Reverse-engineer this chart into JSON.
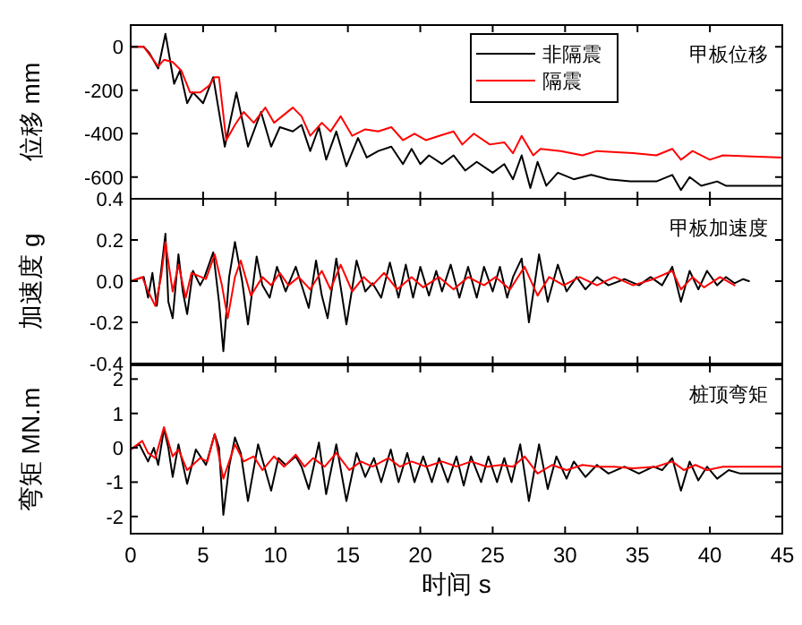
{
  "chart_data": [
    {
      "type": "line",
      "ylabel": "位移 mm",
      "xlim": [
        0,
        45
      ],
      "xticks": [
        0,
        5,
        10,
        15,
        20,
        25,
        30,
        35,
        40,
        45
      ],
      "ylim": [
        -700,
        100
      ],
      "yticks": [
        -600,
        -400,
        -200,
        0
      ],
      "tick_labels": "y",
      "legend": "top right",
      "annotations": [
        "甲板位移"
      ],
      "series": [
        {
          "name": "非隔震",
          "color": "#000000",
          "x": [
            0,
            0.9,
            1.3,
            1.9,
            2.4,
            3.0,
            3.4,
            3.9,
            4.3,
            5.0,
            5.7,
            6.5,
            7.3,
            8.1,
            9.0,
            9.7,
            10.3,
            11.2,
            11.8,
            12.4,
            13.0,
            13.5,
            14.2,
            14.9,
            15.7,
            16.3,
            17.1,
            18.0,
            18.8,
            19.4,
            20.0,
            20.6,
            21.5,
            22.3,
            23.1,
            23.9,
            25.0,
            25.8,
            26.4,
            27.0,
            27.6,
            28.1,
            28.7,
            29.5,
            30.6,
            31.8,
            33.0,
            34.5,
            36.3,
            37.4,
            38.0,
            38.6,
            39.4,
            40.5,
            41.1,
            45
          ],
          "values": [
            0,
            0,
            -30,
            -100,
            60,
            -170,
            -110,
            -260,
            -210,
            -260,
            -140,
            -460,
            -210,
            -460,
            -300,
            -460,
            -370,
            -390,
            -360,
            -480,
            -370,
            -520,
            -390,
            -550,
            -420,
            -510,
            -480,
            -460,
            -540,
            -470,
            -540,
            -500,
            -540,
            -500,
            -570,
            -530,
            -580,
            -540,
            -610,
            -500,
            -650,
            -530,
            -640,
            -580,
            -610,
            -590,
            -610,
            -620,
            -620,
            -590,
            -660,
            -600,
            -640,
            -620,
            -640,
            -640
          ]
        },
        {
          "name": "隔震",
          "color": "#ff0000",
          "x": [
            0,
            0.9,
            1.9,
            2.3,
            2.9,
            3.5,
            4.1,
            4.8,
            5.4,
            5.8,
            6.1,
            6.6,
            7.2,
            7.8,
            8.5,
            9.3,
            9.9,
            11.2,
            11.8,
            12.4,
            13.2,
            13.8,
            14.5,
            15.3,
            16.2,
            17.1,
            18.0,
            18.8,
            19.6,
            20.4,
            21.3,
            22.3,
            22.9,
            23.7,
            24.8,
            25.8,
            26.4,
            27.0,
            27.8,
            28.3,
            29.7,
            31.2,
            32.2,
            34.7,
            36.3,
            37.4,
            38.0,
            38.8,
            40.0,
            40.9,
            45
          ],
          "values": [
            0,
            0,
            -90,
            -60,
            -70,
            -110,
            -210,
            -210,
            -180,
            -140,
            -140,
            -430,
            -360,
            -300,
            -350,
            -280,
            -350,
            -280,
            -320,
            -410,
            -350,
            -390,
            -320,
            -410,
            -380,
            -390,
            -370,
            -430,
            -400,
            -430,
            -410,
            -390,
            -450,
            -400,
            -450,
            -440,
            -490,
            -410,
            -500,
            -470,
            -480,
            -500,
            -480,
            -490,
            -500,
            -470,
            -520,
            -480,
            -520,
            -500,
            -510
          ]
        }
      ]
    },
    {
      "type": "line",
      "ylabel": "加速度 g",
      "xlim": [
        0,
        45
      ],
      "xticks": [
        0,
        5,
        10,
        15,
        20,
        25,
        30,
        35,
        40,
        45
      ],
      "ylim": [
        -0.4,
        0.4
      ],
      "yticks": [
        -0.4,
        -0.2,
        {
          "value": 0,
          "label": "0.0"
        },
        0.2,
        0.4
      ],
      "tick_labels": "y",
      "annotations": [
        "甲板加速度"
      ],
      "series": [
        {
          "color": "#000000",
          "x": [
            0,
            0.9,
            1.2,
            1.5,
            1.8,
            2.1,
            2.4,
            2.6,
            2.9,
            3.3,
            3.6,
            3.9,
            4.3,
            4.8,
            5.1,
            5.7,
            6.1,
            6.4,
            6.8,
            7.2,
            7.7,
            8.1,
            8.7,
            9.1,
            9.6,
            10.1,
            10.7,
            11.4,
            11.9,
            12.3,
            12.8,
            13.2,
            13.6,
            14.2,
            14.9,
            15.6,
            16.2,
            16.7,
            17.3,
            17.9,
            18.5,
            19.0,
            19.5,
            20.0,
            20.6,
            21.1,
            21.5,
            22.1,
            22.7,
            23.3,
            23.9,
            24.4,
            25.0,
            25.5,
            26.0,
            26.4,
            27.0,
            27.5,
            28.2,
            28.8,
            29.5,
            30.1,
            30.8,
            31.4,
            32.2,
            33.0,
            34.1,
            35.1,
            35.9,
            36.7,
            37.4,
            38.0,
            38.6,
            39.2,
            39.8,
            40.5,
            41.1,
            41.7,
            42.3,
            42.7
          ],
          "values": [
            0,
            0.02,
            -0.08,
            0.04,
            -0.12,
            0.05,
            0.23,
            -0.1,
            -0.18,
            0.13,
            -0.05,
            -0.16,
            0.05,
            -0.02,
            0.02,
            0.14,
            -0.1,
            -0.34,
            0.02,
            0.19,
            0,
            -0.21,
            0.12,
            -0.02,
            -0.08,
            0.07,
            -0.05,
            0.07,
            -0.04,
            -0.13,
            0.1,
            -0.07,
            -0.18,
            0.11,
            -0.21,
            0.1,
            -0.05,
            -0.01,
            -0.08,
            0.09,
            -0.08,
            0.08,
            -0.08,
            0.07,
            -0.07,
            0.05,
            -0.05,
            0.08,
            -0.08,
            0.07,
            -0.08,
            0.07,
            -0.05,
            0.07,
            -0.08,
            0.02,
            0.11,
            -0.2,
            0.13,
            -0.1,
            0.08,
            -0.05,
            0.02,
            -0.04,
            0.02,
            -0.02,
            0.01,
            -0.02,
            0.02,
            -0.02,
            0.07,
            -0.1,
            0.05,
            -0.04,
            0.05,
            -0.02,
            0.02,
            -0.01,
            0.01,
            0
          ]
        },
        {
          "color": "#ff0000",
          "x": [
            0,
            0.8,
            1.2,
            1.7,
            2.1,
            2.4,
            2.9,
            3.3,
            3.8,
            4.2,
            5.2,
            5.8,
            6.3,
            6.7,
            7.2,
            7.6,
            8.3,
            9.1,
            9.7,
            10.3,
            10.9,
            11.6,
            12.4,
            13.2,
            13.8,
            14.5,
            15.3,
            16.1,
            16.7,
            17.5,
            18.4,
            19.4,
            20.2,
            21.3,
            22.3,
            23.3,
            24.4,
            25.2,
            26.2,
            27.2,
            28.1,
            28.9,
            29.9,
            31.0,
            32.2,
            33.4,
            34.7,
            36.1,
            37.4,
            38.0,
            38.8,
            39.6,
            40.7,
            41.7
          ],
          "values": [
            0,
            0.02,
            -0.05,
            -0.12,
            0.02,
            0.19,
            -0.05,
            0.08,
            -0.08,
            0.04,
            0.01,
            0.13,
            -0.02,
            -0.18,
            0.02,
            0.1,
            -0.07,
            0.02,
            -0.02,
            0.04,
            -0.02,
            0.02,
            -0.04,
            0.05,
            -0.04,
            0.08,
            -0.05,
            0.02,
            -0.02,
            0.04,
            -0.04,
            0.02,
            -0.03,
            0.02,
            -0.04,
            0.02,
            -0.02,
            0.02,
            -0.04,
            0.07,
            -0.07,
            0.02,
            -0.02,
            0.02,
            -0.02,
            0.02,
            -0.02,
            0.01,
            0.05,
            -0.04,
            0.02,
            -0.03,
            0.02,
            -0.02
          ]
        }
      ]
    },
    {
      "type": "line",
      "xlabel": "时间 s",
      "ylabel": "弯矩 MN.m",
      "xlim": [
        0,
        45
      ],
      "xticks": [
        0,
        5,
        10,
        15,
        20,
        25,
        30,
        35,
        40,
        45
      ],
      "ylim": [
        -2.5,
        2.4
      ],
      "yticks": [
        -2,
        -1,
        0,
        1,
        2
      ],
      "annotations": [
        "桩顶弯矩"
      ],
      "series": [
        {
          "color": "#000000",
          "x": [
            0,
            0.6,
            1.2,
            1.6,
            1.9,
            2.3,
            2.6,
            2.9,
            3.3,
            3.9,
            4.5,
            5.2,
            5.8,
            6.1,
            6.4,
            6.8,
            7.2,
            7.6,
            8.1,
            8.8,
            9.7,
            10.2,
            10.7,
            11.4,
            11.8,
            12.3,
            13.0,
            13.5,
            14.2,
            14.9,
            15.6,
            16.2,
            16.8,
            17.3,
            17.96,
            18.5,
            19.1,
            19.6,
            20.2,
            20.8,
            21.3,
            21.9,
            22.5,
            23.0,
            23.5,
            24.2,
            24.7,
            25.3,
            25.8,
            26.3,
            26.9,
            27.5,
            28.2,
            28.8,
            29.4,
            30.1,
            30.6,
            31.4,
            32.2,
            33.0,
            34.1,
            35.1,
            36.1,
            36.7,
            37.4,
            38.0,
            38.6,
            39.2,
            39.8,
            40.5,
            41.3,
            42.1,
            45
          ],
          "values": [
            -0.05,
            0.1,
            -0.4,
            0,
            -0.5,
            0.55,
            0,
            -0.85,
            0.1,
            -1.05,
            -0.05,
            -0.5,
            0.4,
            0,
            -1.95,
            -0.55,
            0.3,
            -0.15,
            -1.55,
            0.1,
            -1.25,
            -0.3,
            -0.5,
            -0.25,
            -0.55,
            -1.2,
            0.15,
            -1.35,
            0.1,
            -1.55,
            -0.15,
            -0.85,
            -0.3,
            -1.0,
            -0.05,
            -1.0,
            -0.15,
            -1.0,
            -0.25,
            -1.0,
            -0.3,
            -1.0,
            -0.25,
            -1.1,
            -0.25,
            -1.0,
            -0.25,
            -1.0,
            -0.3,
            -1.0,
            0.1,
            -1.55,
            0.1,
            -1.2,
            -0.25,
            -0.9,
            -0.4,
            -0.85,
            -0.5,
            -0.75,
            -0.55,
            -0.75,
            -0.55,
            -0.65,
            -0.3,
            -1.25,
            -0.4,
            -0.95,
            -0.55,
            -0.9,
            -0.65,
            -0.75,
            -0.75
          ]
        },
        {
          "color": "#ff0000",
          "x": [
            0,
            0.8,
            1.2,
            1.7,
            2.3,
            2.9,
            3.3,
            3.9,
            4.8,
            5.3,
            5.8,
            6.4,
            7.2,
            7.8,
            8.5,
            9.1,
            9.9,
            10.6,
            11.4,
            12.0,
            12.6,
            13.4,
            14.2,
            15.1,
            15.9,
            16.7,
            17.8,
            18.6,
            19.4,
            20.4,
            21.5,
            22.5,
            23.5,
            24.6,
            25.6,
            26.4,
            27.2,
            28.1,
            29.1,
            30.1,
            31.2,
            32.2,
            33.4,
            34.7,
            36.3,
            37.4,
            38.2,
            39.0,
            39.8,
            40.9,
            42.1,
            45
          ],
          "values": [
            -0.05,
            0.2,
            -0.15,
            -0.3,
            0.6,
            -0.25,
            -0.05,
            -0.65,
            -0.3,
            -0.4,
            0.4,
            -0.9,
            0.1,
            -0.4,
            -0.25,
            -0.65,
            -0.25,
            -0.55,
            -0.2,
            -0.55,
            -0.3,
            -0.55,
            -0.15,
            -0.65,
            -0.4,
            -0.55,
            -0.3,
            -0.55,
            -0.4,
            -0.55,
            -0.4,
            -0.55,
            -0.4,
            -0.55,
            -0.5,
            -0.55,
            -0.25,
            -0.75,
            -0.5,
            -0.65,
            -0.5,
            -0.55,
            -0.55,
            -0.6,
            -0.55,
            -0.4,
            -0.65,
            -0.5,
            -0.65,
            -0.55,
            -0.55,
            -0.55
          ]
        }
      ]
    }
  ]
}
